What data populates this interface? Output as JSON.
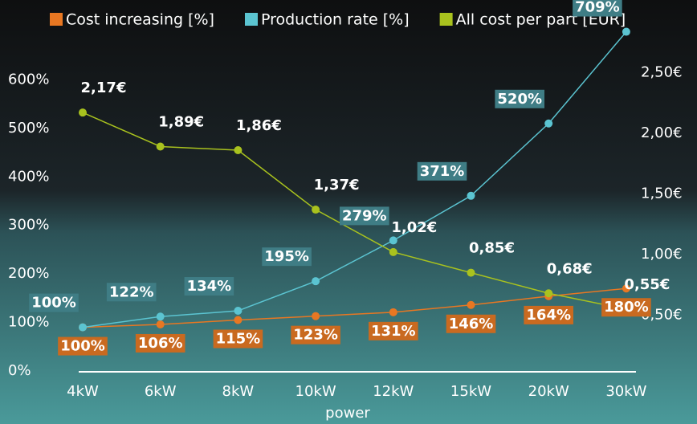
{
  "chart_data": {
    "type": "line",
    "x_label": "power",
    "categories": [
      "4kW",
      "6kW",
      "8kW",
      "10kW",
      "12kW",
      "15kW",
      "20kW",
      "30kW"
    ],
    "series": [
      {
        "name": "Cost increasing [%]",
        "color": "#e87722",
        "values": [
          100,
          106,
          115,
          123,
          131,
          146,
          164,
          180
        ],
        "value_labels": [
          "100%",
          "106%",
          "115%",
          "123%",
          "131%",
          "146%",
          "164%",
          "180%"
        ]
      },
      {
        "name": "Production rate [%]",
        "color": "#5bc4d1",
        "values": [
          100,
          122,
          134,
          195,
          279,
          371,
          520,
          709
        ],
        "value_labels": [
          "100%",
          "122%",
          "134%",
          "195%",
          "279%",
          "371%",
          "520%",
          "709%"
        ]
      },
      {
        "name": "All cost per part [EUR]",
        "color": "#a9c21e",
        "axis": "y2",
        "values": [
          2.17,
          1.89,
          1.86,
          1.37,
          1.02,
          0.85,
          0.68,
          0.55
        ],
        "value_labels": [
          "2,17€",
          "1,89€",
          "1,86€",
          "1,37€",
          "1,02€",
          "0,85€",
          "0,68€",
          "0,55€"
        ]
      }
    ],
    "ylim": [
      0,
      700
    ],
    "yticks": [
      {
        "value": 0,
        "label": "0%"
      },
      {
        "value": 100,
        "label": "100%"
      },
      {
        "value": 200,
        "label": "200%"
      },
      {
        "value": 300,
        "label": "300%"
      },
      {
        "value": 400,
        "label": "400%"
      },
      {
        "value": 500,
        "label": "500%"
      },
      {
        "value": 600,
        "label": "600%"
      }
    ],
    "y2lim": [
      0,
      2.8
    ],
    "y2ticks": [
      {
        "value": 0.5,
        "label": "0,50€"
      },
      {
        "value": 1.0,
        "label": "1,00€"
      },
      {
        "value": 1.5,
        "label": "1,50€"
      },
      {
        "value": 2.0,
        "label": "2,00€"
      },
      {
        "value": 2.5,
        "label": "2,50€"
      }
    ]
  }
}
